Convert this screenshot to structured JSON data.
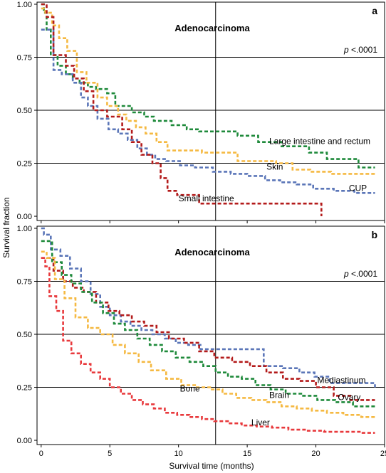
{
  "chart_data": {
    "type": "line",
    "xlabel": "Survival time (months)",
    "ylabel": "Survival fraction",
    "xlim": [
      -0.3,
      25
    ],
    "ylim": [
      -0.02,
      1.01
    ],
    "xticks": [
      0,
      5,
      10,
      15,
      20,
      25
    ],
    "xtick_labels": [
      "0",
      "5",
      "10",
      "15",
      "20",
      "25"
    ],
    "yticks": [
      0,
      0.25,
      0.5,
      0.75,
      1
    ],
    "ytick_labels": [
      "0.00",
      "0.25",
      "0.50",
      "0.75",
      "1.00"
    ],
    "grid": {
      "horizontal": [
        0.25,
        0.5,
        0.75
      ],
      "vertical": [
        12.7
      ]
    },
    "colors": {
      "green": "#1f8a3b",
      "yellow": "#f5b942",
      "blue": "#5b76b8",
      "darkred": "#b31b1b",
      "red": "#e8393c"
    },
    "panels": [
      {
        "letter": "a",
        "title": "Adenocarcinoma",
        "p_prefix": "p",
        "p_value": " <.0001",
        "series": [
          {
            "name": "Large intestine and rectum",
            "color": "#1f8a3b",
            "x": [
              0,
              0.2,
              0.4,
              0.7,
              1.2,
              1.8,
              2.3,
              2.8,
              3.4,
              4,
              4.8,
              5.4,
              6.6,
              7.5,
              8.2,
              9.5,
              10.6,
              11.5,
              12.7,
              14.3,
              15.8,
              17.5,
              19.5,
              20.8,
              22.2,
              23.1,
              24.3
            ],
            "y": [
              1,
              0.96,
              0.88,
              0.76,
              0.71,
              0.67,
              0.65,
              0.63,
              0.61,
              0.6,
              0.58,
              0.52,
              0.49,
              0.47,
              0.45,
              0.43,
              0.41,
              0.4,
              0.4,
              0.38,
              0.35,
              0.33,
              0.3,
              0.27,
              0.27,
              0.23,
              0.23
            ],
            "label": {
              "text": "Large intestine and rectum",
              "x": 16.6,
              "y": 0.34
            }
          },
          {
            "name": "Skin",
            "color": "#f5b942",
            "x": [
              0,
              0.3,
              0.8,
              1.3,
              1.9,
              2.6,
              3.3,
              4.1,
              4.8,
              5.6,
              6.2,
              6.9,
              7.6,
              8.4,
              9.2,
              10.4,
              11.7,
              13.1,
              14.3,
              15.6,
              17.1,
              18.3,
              19.6,
              21.1,
              22.6,
              24.3
            ],
            "y": [
              0.98,
              0.96,
              0.9,
              0.84,
              0.78,
              0.68,
              0.63,
              0.56,
              0.52,
              0.48,
              0.45,
              0.42,
              0.39,
              0.35,
              0.31,
              0.31,
              0.3,
              0.3,
              0.26,
              0.26,
              0.25,
              0.22,
              0.21,
              0.2,
              0.2,
              0.2
            ],
            "label": {
              "text": "Skin",
              "x": 16.4,
              "y": 0.22
            }
          },
          {
            "name": "CUP",
            "color": "#5b76b8",
            "x": [
              0,
              0.3,
              0.9,
              1.5,
              2.3,
              2.9,
              3.4,
              4.1,
              4.9,
              5.6,
              6.3,
              7.0,
              7.7,
              8.3,
              9.1,
              10.1,
              11.2,
              12.5,
              13.8,
              15.0,
              16.3,
              17.4,
              18.6,
              19.8,
              21.3,
              22.8,
              24.3
            ],
            "y": [
              0.88,
              0.88,
              0.69,
              0.67,
              0.63,
              0.56,
              0.52,
              0.46,
              0.41,
              0.39,
              0.36,
              0.32,
              0.29,
              0.27,
              0.26,
              0.24,
              0.23,
              0.21,
              0.2,
              0.19,
              0.17,
              0.16,
              0.15,
              0.13,
              0.12,
              0.11,
              0.11
            ],
            "label": {
              "text": "CUP",
              "x": 22.4,
              "y": 0.12
            }
          },
          {
            "name": "Small intestine",
            "color": "#b31b1b",
            "x": [
              0,
              0.4,
              0.9,
              1.8,
              2.4,
              3.1,
              3.8,
              4.8,
              5.9,
              6.6,
              7.3,
              8.1,
              8.7,
              9.2,
              9.9,
              11.5,
              12.4,
              14.0,
              15.5,
              17.0,
              18.5,
              20.4
            ],
            "y": [
              1,
              0.94,
              0.76,
              0.71,
              0.65,
              0.59,
              0.5,
              0.47,
              0.41,
              0.35,
              0.29,
              0.25,
              0.18,
              0.12,
              0.1,
              0.06,
              0.06,
              0.06,
              0.06,
              0.06,
              0.06,
              0.06
            ],
            "end_drop_to": 0.0,
            "label": {
              "text": "Small intestine",
              "x": 10.0,
              "y": 0.07
            }
          }
        ]
      },
      {
        "letter": "b",
        "title": "Adenocarcinoma",
        "p_prefix": "p",
        "p_value": " <.0001",
        "series": [
          {
            "name": "Mediastinum",
            "color": "#5b76b8",
            "x": [
              0,
              0.2,
              0.7,
              1.4,
              2.1,
              2.9,
              3.6,
              4.3,
              5.0,
              5.8,
              6.5,
              7.3,
              8.1,
              9.0,
              9.8,
              10.7,
              11.6,
              12.5,
              14.5,
              16.2,
              17.6,
              18.8,
              19.9,
              21.0,
              22.1,
              24.3
            ],
            "y": [
              1,
              0.97,
              0.9,
              0.87,
              0.81,
              0.75,
              0.69,
              0.63,
              0.59,
              0.56,
              0.54,
              0.52,
              0.5,
              0.48,
              0.46,
              0.45,
              0.43,
              0.43,
              0.43,
              0.35,
              0.34,
              0.32,
              0.3,
              0.27,
              0.27,
              0.25
            ],
            "label": {
              "text": "Mediastinum",
              "x": 20.1,
              "y": 0.27
            }
          },
          {
            "name": "Ovary",
            "color": "#b31b1b",
            "x": [
              0,
              0.3,
              0.9,
              1.6,
              2.3,
              3.1,
              4.0,
              4.9,
              5.7,
              6.6,
              7.5,
              8.4,
              9.3,
              10.4,
              11.5,
              12.6,
              13.9,
              15.2,
              16.4,
              17.6,
              18.8,
              20.0,
              21.3,
              22.5,
              24.3
            ],
            "y": [
              0.86,
              0.86,
              0.8,
              0.75,
              0.72,
              0.7,
              0.65,
              0.61,
              0.59,
              0.56,
              0.54,
              0.51,
              0.48,
              0.46,
              0.42,
              0.39,
              0.37,
              0.35,
              0.32,
              0.29,
              0.28,
              0.25,
              0.21,
              0.19,
              0.19
            ],
            "label": {
              "text": "Ovary",
              "x": 21.6,
              "y": 0.19
            }
          },
          {
            "name": "Brain",
            "color": "#1f8a3b",
            "x": [
              0,
              0.3,
              0.8,
              1.5,
              2.2,
              2.9,
              3.7,
              4.5,
              5.3,
              6.1,
              7.0,
              7.9,
              8.8,
              9.8,
              10.8,
              11.8,
              12.7,
              13.6,
              14.6,
              15.6,
              16.7,
              17.8,
              19.0,
              20.1,
              21.4,
              22.7,
              24.3
            ],
            "y": [
              0.94,
              0.94,
              0.84,
              0.78,
              0.74,
              0.7,
              0.65,
              0.6,
              0.55,
              0.52,
              0.48,
              0.45,
              0.42,
              0.39,
              0.37,
              0.35,
              0.32,
              0.3,
              0.29,
              0.26,
              0.24,
              0.22,
              0.21,
              0.19,
              0.18,
              0.16,
              0.16
            ],
            "label": {
              "text": "Brain",
              "x": 16.6,
              "y": 0.2
            }
          },
          {
            "name": "Bone",
            "color": "#f5b942",
            "x": [
              0,
              0.4,
              1.0,
              1.7,
              2.5,
              3.4,
              4.3,
              5.2,
              6.1,
              7.1,
              8.0,
              9.1,
              10.2,
              11.2,
              12.3,
              13.2,
              14.2,
              15.3,
              16.4,
              17.5,
              18.6,
              19.7,
              20.8,
              22.0,
              23.3,
              24.3
            ],
            "y": [
              0.89,
              0.86,
              0.76,
              0.67,
              0.58,
              0.53,
              0.5,
              0.45,
              0.41,
              0.37,
              0.33,
              0.29,
              0.26,
              0.25,
              0.24,
              0.22,
              0.2,
              0.19,
              0.18,
              0.16,
              0.15,
              0.14,
              0.13,
              0.12,
              0.11,
              0.11
            ],
            "label": {
              "text": "Bone",
              "x": 10.1,
              "y": 0.23
            }
          },
          {
            "name": "Liver",
            "color": "#e8393c",
            "x": [
              0,
              0.3,
              0.6,
              1.1,
              1.6,
              2.2,
              2.9,
              3.6,
              4.3,
              5.0,
              5.8,
              6.6,
              7.4,
              8.2,
              9.0,
              9.9,
              10.8,
              11.7,
              12.6,
              13.6,
              14.6,
              15.7,
              16.8,
              18.0,
              19.3,
              20.6,
              22.0,
              23.4,
              24.3
            ],
            "y": [
              0.86,
              0.82,
              0.68,
              0.61,
              0.47,
              0.41,
              0.36,
              0.32,
              0.29,
              0.25,
              0.22,
              0.19,
              0.17,
              0.15,
              0.13,
              0.12,
              0.11,
              0.1,
              0.09,
              0.08,
              0.07,
              0.065,
              0.06,
              0.05,
              0.045,
              0.04,
              0.04,
              0.035,
              0.035
            ],
            "label": {
              "text": "Liver",
              "x": 15.3,
              "y": 0.07
            }
          }
        ]
      }
    ]
  }
}
